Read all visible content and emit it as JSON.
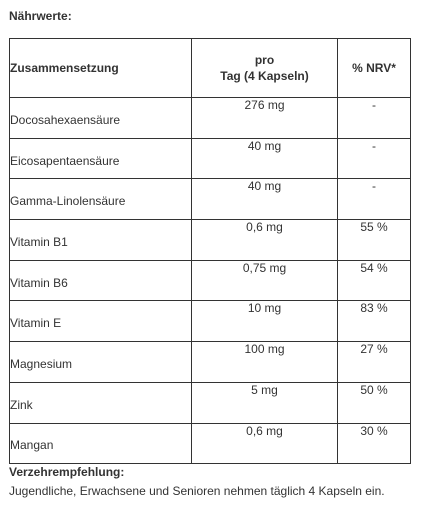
{
  "heading": "Nährwerte:",
  "table": {
    "headers": {
      "composition": "Zusammensetzung",
      "per_day_line1": "pro",
      "per_day_line2": "Tag (4 Kapseln)",
      "nrv": "% NRV*"
    },
    "rows": [
      {
        "name": "Docosahexaensäure",
        "amount": "276 mg",
        "nrv": "-"
      },
      {
        "name": "Eicosapentaensäure",
        "amount": "40 mg",
        "nrv": "-"
      },
      {
        "name": "Gamma-Linolensäure",
        "amount": "40 mg",
        "nrv": "-"
      },
      {
        "name": "Vitamin B1",
        "amount": "0,6 mg",
        "nrv": "55 %"
      },
      {
        "name": "Vitamin B6",
        "amount": "0,75 mg",
        "nrv": "54 %"
      },
      {
        "name": "Vitamin E",
        "amount": "10 mg",
        "nrv": "83 %"
      },
      {
        "name": "Magnesium",
        "amount": "100 mg",
        "nrv": "27 %"
      },
      {
        "name": "Zink",
        "amount": "5 mg",
        "nrv": "50 %"
      },
      {
        "name": "Mangan",
        "amount": "0,6 mg",
        "nrv": "30 %"
      }
    ]
  },
  "footer": {
    "title": "Verzehrempfehlung:",
    "text": "Jugendliche, Erwachsene und Senioren nehmen täglich 4 Kapseln ein."
  }
}
